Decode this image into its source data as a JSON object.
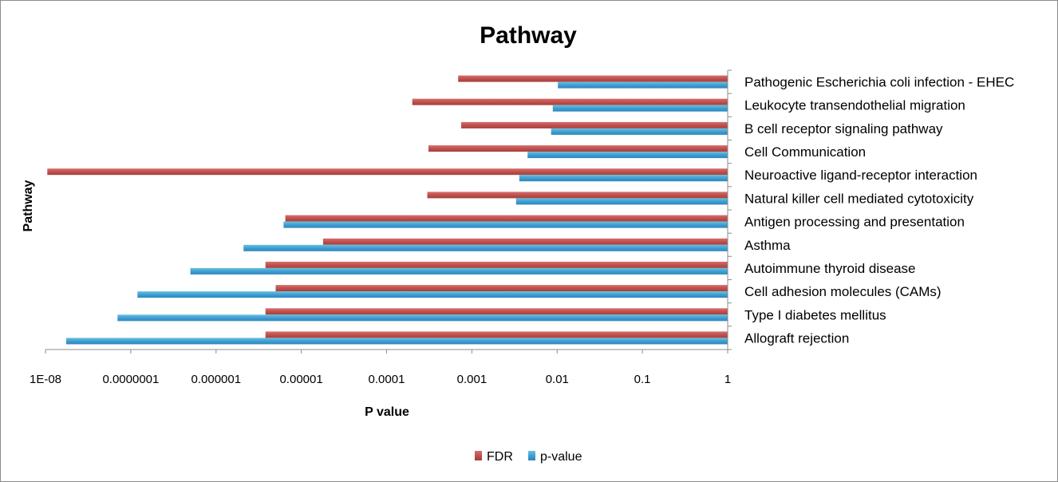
{
  "chart_data": {
    "type": "bar",
    "orientation": "horizontal",
    "title": "Pathway",
    "xlabel": "P value",
    "ylabel": "Pathway",
    "x_scale": "log",
    "xlim": [
      1e-08,
      1
    ],
    "x_ticks": [
      1e-08,
      1e-07,
      1e-06,
      1e-05,
      0.0001,
      0.001,
      0.01,
      0.1,
      1
    ],
    "x_tick_labels": [
      "1E-08",
      "0.0000001",
      "0.000001",
      "0.00001",
      "0.0001",
      "0.001",
      "0.01",
      "0.1",
      "1"
    ],
    "categories": [
      "Allograft rejection",
      "Type I diabetes mellitus",
      "Cell adhesion molecules (CAMs)",
      "Autoimmune thyroid disease",
      "Asthma",
      "Antigen processing and presentation",
      "Natural killer cell mediated cytotoxicity",
      "Neuroactive ligand-receptor interaction",
      "Cell Communication",
      "B cell receptor signaling pathway",
      "Leukocyte transendothelial migration",
      "Pathogenic Escherichia coli infection - EHEC"
    ],
    "series": [
      {
        "name": "FDR",
        "color": "#c0504d",
        "values": [
          3.8e-06,
          3.8e-06,
          5e-06,
          3.8e-06,
          1.8e-05,
          6.5e-06,
          0.0003,
          1.05e-08,
          0.00031,
          0.00075,
          0.0002,
          0.00069
        ]
      },
      {
        "name": "p-value",
        "color": "#4bacc6",
        "values": [
          1.75e-08,
          7e-08,
          1.2e-07,
          5e-07,
          2.1e-06,
          6.2e-06,
          0.0033,
          0.0036,
          0.0045,
          0.0085,
          0.0089,
          0.0102
        ]
      }
    ],
    "legend_position": "bottom",
    "grid": false
  }
}
